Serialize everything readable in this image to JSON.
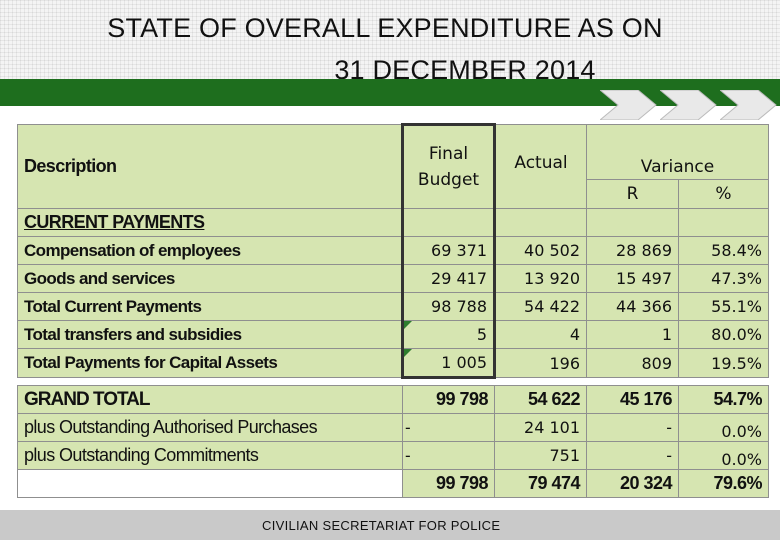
{
  "title": {
    "line1": "STATE OF OVERALL EXPENDITURE AS ON",
    "line2": "31 DECEMBER 2014"
  },
  "table": {
    "headers": {
      "description": "Description",
      "final_budget_1": "Final",
      "final_budget_2": "Budget",
      "actual": "Actual",
      "variance": "Variance",
      "variance_r": "R",
      "variance_pct": "%"
    },
    "section_label": "CURRENT PAYMENTS",
    "rows": [
      {
        "label": "Compensation of employees",
        "final": "69 371",
        "actual": "40 502",
        "var_r": "28 869",
        "var_pct": "58.4%"
      },
      {
        "label": "Goods and services",
        "final": "29 417",
        "actual": "13 920",
        "var_r": "15 497",
        "var_pct": "47.3%"
      },
      {
        "label": "Total Current Payments",
        "final": "98 788",
        "actual": "54 422",
        "var_r": "44 366",
        "var_pct": "55.1%"
      },
      {
        "label": "Total transfers and subsidies",
        "final": "5",
        "actual": "4",
        "var_r": "1",
        "var_pct": "80.0%"
      },
      {
        "label": "Total Payments for Capital Assets",
        "final": "1 005",
        "actual": "196",
        "var_r": "809",
        "var_pct": "19.5%"
      }
    ],
    "grand_total": {
      "label": "GRAND TOTAL",
      "final": "99 798",
      "actual": "54 622",
      "var_r": "45 176",
      "var_pct": "54.7%"
    },
    "extra_rows": [
      {
        "label": "plus Outstanding Authorised Purchases",
        "final": "-",
        "actual": "24 101",
        "var_r": "-",
        "var_pct": "0.0%"
      },
      {
        "label": "plus Outstanding Commitments",
        "final": "-",
        "actual": "751",
        "var_r": "-",
        "var_pct": "0.0%"
      }
    ],
    "final_total": {
      "final": "99 798",
      "actual": "79 474",
      "var_r": "20 324",
      "var_pct": "79.6%"
    }
  },
  "footer": {
    "text": "CIVILIAN SECRETARIAT FOR POLICE"
  },
  "colors": {
    "green_bar": "#1e6e1e",
    "cell_green": "#d6e5b1",
    "footer_bg": "#c9c9c9"
  }
}
